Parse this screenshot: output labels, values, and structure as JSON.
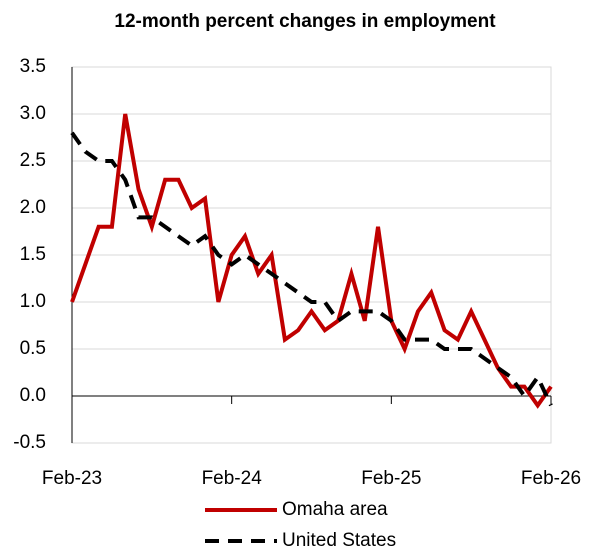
{
  "chart_data": {
    "type": "line",
    "title": "12-month percent changes in employment",
    "categories": [
      "Feb-23",
      null,
      null,
      null,
      null,
      null,
      null,
      null,
      null,
      null,
      null,
      null,
      "Feb-24",
      null,
      null,
      null,
      null,
      null,
      null,
      null,
      null,
      null,
      null,
      null,
      "Feb-25",
      null,
      null,
      null,
      null,
      null,
      null,
      null,
      null,
      null,
      null,
      null,
      "Feb-26"
    ],
    "series": [
      {
        "name": "Omaha area",
        "color": "#c00000",
        "dash": false,
        "values": [
          1.0,
          1.4,
          1.8,
          1.8,
          3.0,
          2.2,
          1.8,
          2.3,
          2.3,
          2.0,
          2.1,
          1.0,
          1.5,
          1.7,
          1.3,
          1.5,
          0.6,
          0.7,
          0.9,
          0.7,
          0.8,
          1.3,
          0.8,
          1.8,
          0.8,
          0.5,
          0.9,
          1.1,
          0.7,
          0.6,
          0.9,
          0.6,
          0.3,
          0.1,
          0.1,
          -0.1,
          0.1
        ]
      },
      {
        "name": "United States",
        "color": "#000000",
        "dash": true,
        "values": [
          2.8,
          2.6,
          2.5,
          2.5,
          2.3,
          1.9,
          1.9,
          1.8,
          1.7,
          1.6,
          1.7,
          1.5,
          1.4,
          1.5,
          1.4,
          1.3,
          1.2,
          1.1,
          1.0,
          1.0,
          0.8,
          0.9,
          0.9,
          0.9,
          0.8,
          0.6,
          0.6,
          0.6,
          0.5,
          0.5,
          0.5,
          0.4,
          0.3,
          0.2,
          0.0,
          0.2,
          -0.1
        ]
      }
    ],
    "ylim": [
      -0.5,
      3.5
    ],
    "yticks": [
      -0.5,
      {
        "value": 0,
        "label": "0.0"
      },
      0.5,
      {
        "value": 1,
        "label": "1.0"
      },
      1.5,
      {
        "value": 2,
        "label": "2.0"
      },
      2.5,
      {
        "value": 3,
        "label": "3.0"
      },
      3.5
    ],
    "grid": true
  }
}
